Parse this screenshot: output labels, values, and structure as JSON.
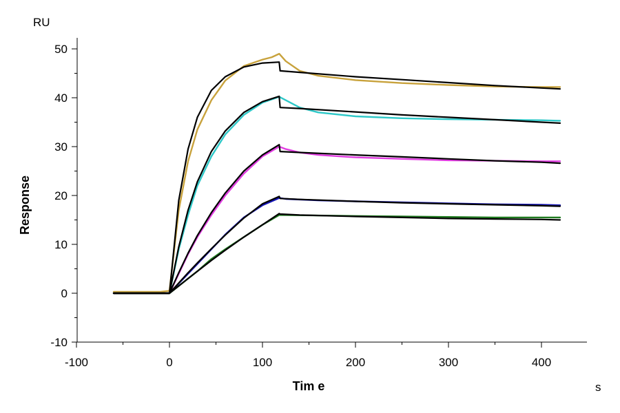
{
  "chart_data": {
    "type": "line",
    "title": "",
    "xlabel": "Tim e",
    "ylabel": "Response",
    "x_unit": "s",
    "y_unit": "RU",
    "xlim": [
      -100,
      450
    ],
    "ylim": [
      -10,
      52
    ],
    "x_ticks": [
      -100,
      0,
      100,
      200,
      300,
      400
    ],
    "y_ticks": [
      -10,
      0,
      10,
      20,
      30,
      40,
      50
    ],
    "x_tick_labels": [
      "-100",
      "0",
      "100",
      "200",
      "300",
      "400"
    ],
    "y_tick_labels": [
      "-10",
      "0",
      "10",
      "20",
      "30",
      "40",
      "50"
    ],
    "grid": false,
    "legend": "none",
    "series": [
      {
        "color": "#c8a23c",
        "kind": "data",
        "x": [
          -60,
          -10,
          0,
          10,
          20,
          30,
          45,
          60,
          80,
          100,
          110,
          118,
          125,
          140,
          160,
          200,
          250,
          300,
          350,
          400,
          420
        ],
        "y": [
          0.3,
          0.3,
          0.5,
          17,
          27,
          33.5,
          39.5,
          43.5,
          46.5,
          47.8,
          48.3,
          49,
          47.5,
          45.5,
          44.5,
          43.6,
          43,
          42.6,
          42.3,
          42.2,
          42.2
        ]
      },
      {
        "color": "#2ec8c8",
        "kind": "data",
        "x": [
          -60,
          0,
          10,
          20,
          30,
          45,
          60,
          80,
          100,
          118,
          125,
          140,
          160,
          200,
          250,
          300,
          350,
          400,
          420
        ],
        "y": [
          0,
          0,
          9,
          16,
          22,
          28,
          32.5,
          36.5,
          39,
          40.2,
          39.5,
          38,
          37,
          36.2,
          35.8,
          35.6,
          35.5,
          35.4,
          35.3
        ]
      },
      {
        "color": "#e03ce0",
        "kind": "data",
        "x": [
          -60,
          0,
          10,
          20,
          30,
          45,
          60,
          80,
          100,
          118,
          125,
          140,
          160,
          200,
          250,
          300,
          350,
          400,
          420
        ],
        "y": [
          0,
          0,
          4,
          8,
          11.5,
          16,
          20,
          24.5,
          28,
          30,
          29.5,
          28.8,
          28.3,
          27.8,
          27.5,
          27.2,
          27.1,
          27,
          27
        ]
      },
      {
        "color": "#1414b4",
        "kind": "data",
        "x": [
          -60,
          0,
          10,
          20,
          30,
          45,
          60,
          80,
          100,
          118,
          125,
          160,
          200,
          250,
          300,
          350,
          400,
          420
        ],
        "y": [
          0,
          0,
          2,
          4,
          6,
          9,
          12,
          15.5,
          18,
          19.5,
          19.3,
          19,
          18.8,
          18.6,
          18.4,
          18.2,
          18.1,
          18
        ]
      },
      {
        "color": "#1e7a1e",
        "kind": "data",
        "x": [
          -60,
          0,
          10,
          20,
          30,
          45,
          60,
          80,
          100,
          118,
          125,
          160,
          200,
          250,
          300,
          350,
          400,
          420
        ],
        "y": [
          0,
          0,
          1.5,
          3,
          4.5,
          7,
          9,
          11.5,
          14,
          16,
          16,
          15.9,
          15.8,
          15.7,
          15.6,
          15.5,
          15.5,
          15.5
        ]
      },
      {
        "color": "#000000",
        "kind": "fit",
        "x": [
          -60,
          0,
          10,
          20,
          30,
          45,
          60,
          80,
          100,
          118,
          119,
          140,
          200,
          250,
          300,
          350,
          400,
          420
        ],
        "y": [
          0,
          0,
          19,
          29.5,
          36,
          41.5,
          44.3,
          46.3,
          47.1,
          47.3,
          45.5,
          45.2,
          44.3,
          43.7,
          43.1,
          42.5,
          42,
          41.8
        ]
      },
      {
        "color": "#000000",
        "kind": "fit",
        "x": [
          -60,
          0,
          10,
          20,
          30,
          45,
          60,
          80,
          100,
          118,
          119,
          140,
          200,
          250,
          300,
          350,
          400,
          420
        ],
        "y": [
          0,
          0,
          9.5,
          17,
          22.8,
          29,
          33.2,
          37,
          39.2,
          40.3,
          38,
          37.8,
          37.1,
          36.5,
          36,
          35.5,
          35,
          34.8
        ]
      },
      {
        "color": "#000000",
        "kind": "fit",
        "x": [
          -60,
          0,
          10,
          20,
          30,
          45,
          60,
          80,
          100,
          118,
          119,
          140,
          200,
          250,
          300,
          350,
          400,
          420
        ],
        "y": [
          0,
          0,
          4.2,
          8.2,
          11.8,
          16.5,
          20.5,
          25,
          28.3,
          30.4,
          29,
          28.8,
          28.3,
          27.9,
          27.5,
          27.1,
          26.8,
          26.6
        ]
      },
      {
        "color": "#000000",
        "kind": "fit",
        "x": [
          -60,
          0,
          10,
          20,
          30,
          45,
          60,
          80,
          100,
          118,
          119,
          140,
          200,
          250,
          300,
          350,
          400,
          420
        ],
        "y": [
          0,
          0,
          2.1,
          4.2,
          6.2,
          9.1,
          11.9,
          15.4,
          18.3,
          19.8,
          19.4,
          19.2,
          18.8,
          18.5,
          18.3,
          18.1,
          17.9,
          17.8
        ]
      },
      {
        "color": "#000000",
        "kind": "fit",
        "x": [
          -60,
          0,
          10,
          20,
          30,
          45,
          60,
          80,
          100,
          118,
          119,
          140,
          200,
          250,
          300,
          350,
          400,
          420
        ],
        "y": [
          0,
          0,
          1.5,
          3,
          4.5,
          6.7,
          8.8,
          11.5,
          14,
          16.3,
          16.2,
          16,
          15.7,
          15.5,
          15.3,
          15.2,
          15.1,
          15
        ]
      }
    ]
  }
}
